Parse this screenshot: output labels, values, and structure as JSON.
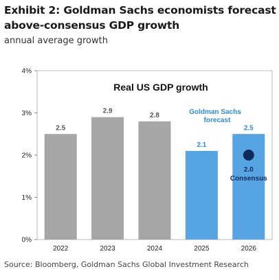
{
  "header": {
    "title": "Exhibit 2: Goldman Sachs economists forecast above-consensus GDP growth",
    "subtitle": "annual average growth"
  },
  "footer": {
    "source": "Source: Bloomberg, Goldman Sachs Global Investment Research"
  },
  "colors": {
    "actual": "#a6a6a6",
    "forecast": "#56a5e2",
    "consensus_dot": "#0f2b5b",
    "label_gray": "#555555",
    "label_blue": "#2f8bd6",
    "label_dark": "#0f2b5b"
  },
  "chart_data": {
    "type": "bar",
    "title": "Real US GDP growth",
    "categories": [
      "2022",
      "2023",
      "2024",
      "2025",
      "2026"
    ],
    "values": [
      2.5,
      2.9,
      2.8,
      2.1,
      2.5
    ],
    "value_labels": [
      "2.5",
      "2.9",
      "2.8",
      "2.1",
      "2.5"
    ],
    "series_kind": [
      "actual",
      "actual",
      "actual",
      "forecast",
      "forecast"
    ],
    "y_ticks": [
      "0%",
      "1%",
      "2%",
      "3%",
      "4%"
    ],
    "ylim": [
      0,
      4
    ],
    "forecast_annotation": [
      "Goldman Sachs",
      "forecast"
    ],
    "consensus": {
      "category": "2026",
      "value": 2.0,
      "value_label": "2.0",
      "label": "Consensus"
    },
    "grid": false,
    "legend": "none"
  }
}
